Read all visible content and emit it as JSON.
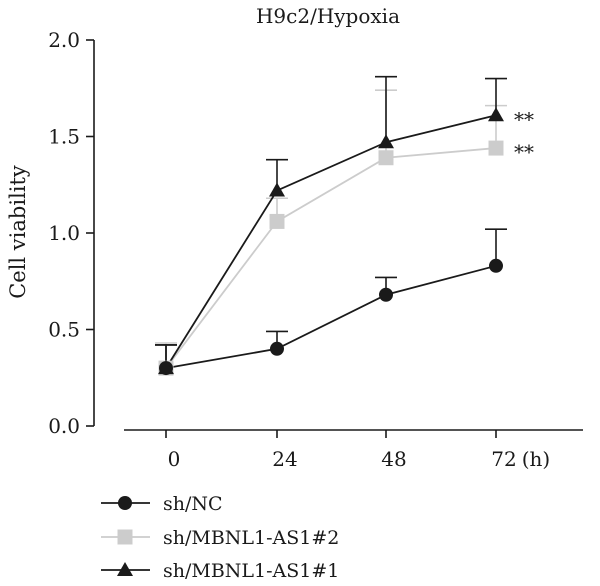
{
  "chart_data": {
    "type": "line",
    "title": "H9c2/Hypoxia",
    "xlabel": "",
    "ylabel": "Cell viability",
    "x_unit": "(h)",
    "x": [
      0,
      24,
      48,
      72
    ],
    "x_tick_labels": [
      "0",
      "24",
      "48",
      "72"
    ],
    "ylim": [
      0,
      2.0
    ],
    "y_ticks": [
      0.0,
      0.5,
      1.0,
      1.5,
      2.0
    ],
    "y_tick_labels": [
      "0.0",
      "0.5",
      "1.0",
      "1.5",
      "2.0"
    ],
    "grid": false,
    "legend_position": "bottom-left",
    "series": [
      {
        "name": "sh/NC",
        "marker": "circle",
        "color": "#1a1a1a",
        "values": [
          0.3,
          0.4,
          0.68,
          0.83
        ],
        "error": [
          0.12,
          0.09,
          0.09,
          0.19
        ],
        "annotation": ""
      },
      {
        "name": "sh/MBNL1-AS1#2",
        "marker": "square",
        "color": "#cccccc",
        "values": [
          0.3,
          1.06,
          1.39,
          1.44
        ],
        "error": [
          0.13,
          0.12,
          0.35,
          0.22
        ],
        "annotation": "**"
      },
      {
        "name": "sh/MBNL1-AS1#1",
        "marker": "triangle",
        "color": "#1a1a1a",
        "values": [
          0.3,
          1.22,
          1.47,
          1.61
        ],
        "error": [
          0.12,
          0.16,
          0.34,
          0.19
        ],
        "annotation": "**"
      }
    ]
  }
}
